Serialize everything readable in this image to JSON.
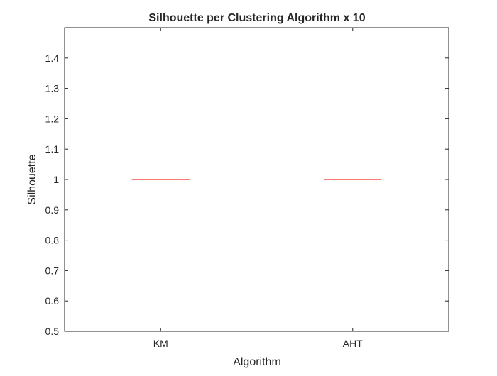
{
  "chart_data": {
    "type": "box",
    "title": "Silhouette per Clustering Algorithm x 10",
    "xlabel": "Algorithm",
    "ylabel": "Silhouette",
    "categories": [
      "KM",
      "AHT"
    ],
    "values": [
      1,
      1
    ],
    "ylim": [
      0.5,
      1.5
    ],
    "yticks": [
      "0.5",
      "0.6",
      "0.7",
      "0.8",
      "0.9",
      "1",
      "1.1",
      "1.2",
      "1.3",
      "1.4"
    ],
    "ytick_values": [
      0.5,
      0.6,
      0.7,
      0.8,
      0.9,
      1.0,
      1.1,
      1.2,
      1.3,
      1.4
    ],
    "grid": false,
    "legend": "none",
    "colors": {
      "median": "#ff4d4d",
      "axes": "#262626",
      "background": "#ffffff"
    }
  }
}
